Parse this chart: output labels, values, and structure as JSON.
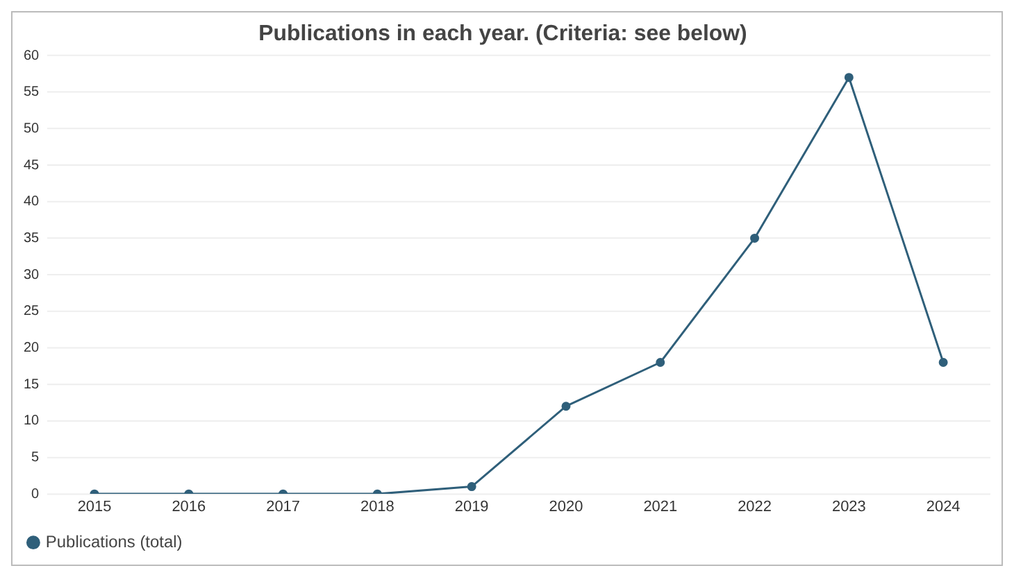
{
  "chart_data": {
    "type": "line",
    "title": "Publications in each year. (Criteria: see below)",
    "categories": [
      "2015",
      "2016",
      "2017",
      "2018",
      "2019",
      "2020",
      "2021",
      "2022",
      "2023",
      "2024"
    ],
    "series": [
      {
        "name": "Publications (total)",
        "color": "#2f5f7a",
        "values": [
          0,
          0,
          0,
          0,
          1,
          12,
          18,
          35,
          57,
          18
        ]
      }
    ],
    "ylim": [
      0,
      60
    ],
    "yticks": [
      0,
      5,
      10,
      15,
      20,
      25,
      30,
      35,
      40,
      45,
      50,
      55,
      60
    ],
    "grid": "y",
    "legend": "bottom left",
    "marker": "circle",
    "line_style": "solid"
  }
}
